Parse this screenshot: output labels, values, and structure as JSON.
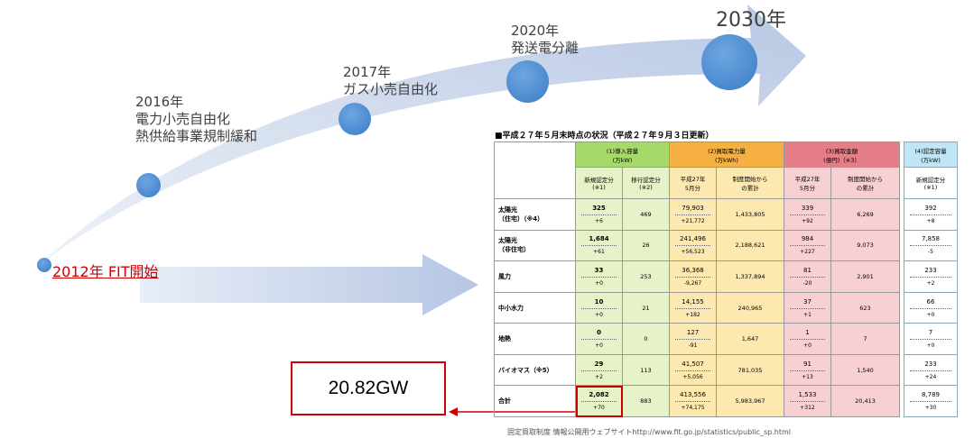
{
  "timeline": [
    {
      "year": "2012年",
      "text": "FIT開始"
    },
    {
      "year": "2016年",
      "text": "電力小売自由化",
      "text2": "熱供給事業規制緩和"
    },
    {
      "year": "2017年",
      "text": "ガス小売自由化"
    },
    {
      "year": "2020年",
      "text": "発送電分離"
    },
    {
      "year": "2030年"
    }
  ],
  "highlight_value": "20.82GW",
  "table": {
    "title": "■平成２７年５月末時点の状況（平成２７年９月３日更新）",
    "groups": [
      {
        "l1": "(1)導入容量",
        "l2": "(万kW)"
      },
      {
        "l1": "(2)買取電力量",
        "l2": "(万kWh)"
      },
      {
        "l1": "(3)買取金額",
        "l2": "(億円)（※3）"
      }
    ],
    "subheaders": [
      {
        "l1": "新規認定分",
        "l2": "(※1)"
      },
      {
        "l1": "移行認定分",
        "l2": "(※2)"
      },
      {
        "l1": "平成27年",
        "l2": "5月分"
      },
      {
        "l1": "制度開始から",
        "l2": "の累計"
      },
      {
        "l1": "平成27年",
        "l2": "5月分"
      },
      {
        "l1": "制度開始から",
        "l2": "の累計"
      }
    ],
    "rows": [
      {
        "name": "太陽光",
        "name2": "（住宅）（※4）",
        "new": "325",
        "new_d": "+6",
        "mig": "469",
        "m": "79,903",
        "m_d": "+21,772",
        "mt": "1,433,805",
        "p": "339",
        "p_d": "+92",
        "pt": "6,269"
      },
      {
        "name": "太陽光",
        "name2": "（非住宅）",
        "new": "1,684",
        "new_d": "+61",
        "mig": "26",
        "m": "241,496",
        "m_d": "+56,523",
        "mt": "2,188,621",
        "p": "984",
        "p_d": "+227",
        "pt": "9,073"
      },
      {
        "name": "風力",
        "name2": "",
        "new": "33",
        "new_d": "+0",
        "mig": "253",
        "m": "36,368",
        "m_d": "-9,267",
        "mt": "1,337,894",
        "p": "81",
        "p_d": "-20",
        "pt": "2,901"
      },
      {
        "name": "中小水力",
        "name2": "",
        "new": "10",
        "new_d": "+0",
        "mig": "21",
        "m": "14,155",
        "m_d": "+182",
        "mt": "240,965",
        "p": "37",
        "p_d": "+1",
        "pt": "623"
      },
      {
        "name": "地熱",
        "name2": "",
        "new": "0",
        "new_d": "+0",
        "mig": "0",
        "m": "127",
        "m_d": "-91",
        "mt": "1,647",
        "p": "1",
        "p_d": "+0",
        "pt": "7"
      },
      {
        "name": "バイオマス（※5）",
        "name2": "",
        "new": "29",
        "new_d": "+2",
        "mig": "113",
        "m": "41,507",
        "m_d": "+5,056",
        "mt": "781,035",
        "p": "91",
        "p_d": "+13",
        "pt": "1,540"
      },
      {
        "name": "合計",
        "name2": "",
        "new": "2,082",
        "new_d": "+70",
        "mig": "883",
        "m": "413,556",
        "m_d": "+74,175",
        "mt": "5,983,967",
        "p": "1,533",
        "p_d": "+312",
        "pt": "20,413"
      }
    ]
  },
  "cert": {
    "h1": "(4)認定容量",
    "h2": "(万kW)",
    "sub1": "新規認定分",
    "sub2": "(※1)",
    "rows": [
      {
        "v": "392",
        "d": "+8"
      },
      {
        "v": "7,858",
        "d": "-5"
      },
      {
        "v": "233",
        "d": "+2"
      },
      {
        "v": "66",
        "d": "+0"
      },
      {
        "v": "7",
        "d": "+0"
      },
      {
        "v": "233",
        "d": "+24"
      },
      {
        "v": "8,789",
        "d": "+30"
      }
    ]
  },
  "source": "固定買取制度 情報公開用ウェブサイトhttp://www.fit.go.jp/statistics/public_sp.html",
  "colors": {
    "arrow": "#c9d6ea",
    "dot": "#4a8ad4",
    "highlight": "#cc0000",
    "green": "#a6d96a",
    "orange": "#f5b041",
    "red": "#e67e88",
    "cyan": "#bfe6f7"
  }
}
